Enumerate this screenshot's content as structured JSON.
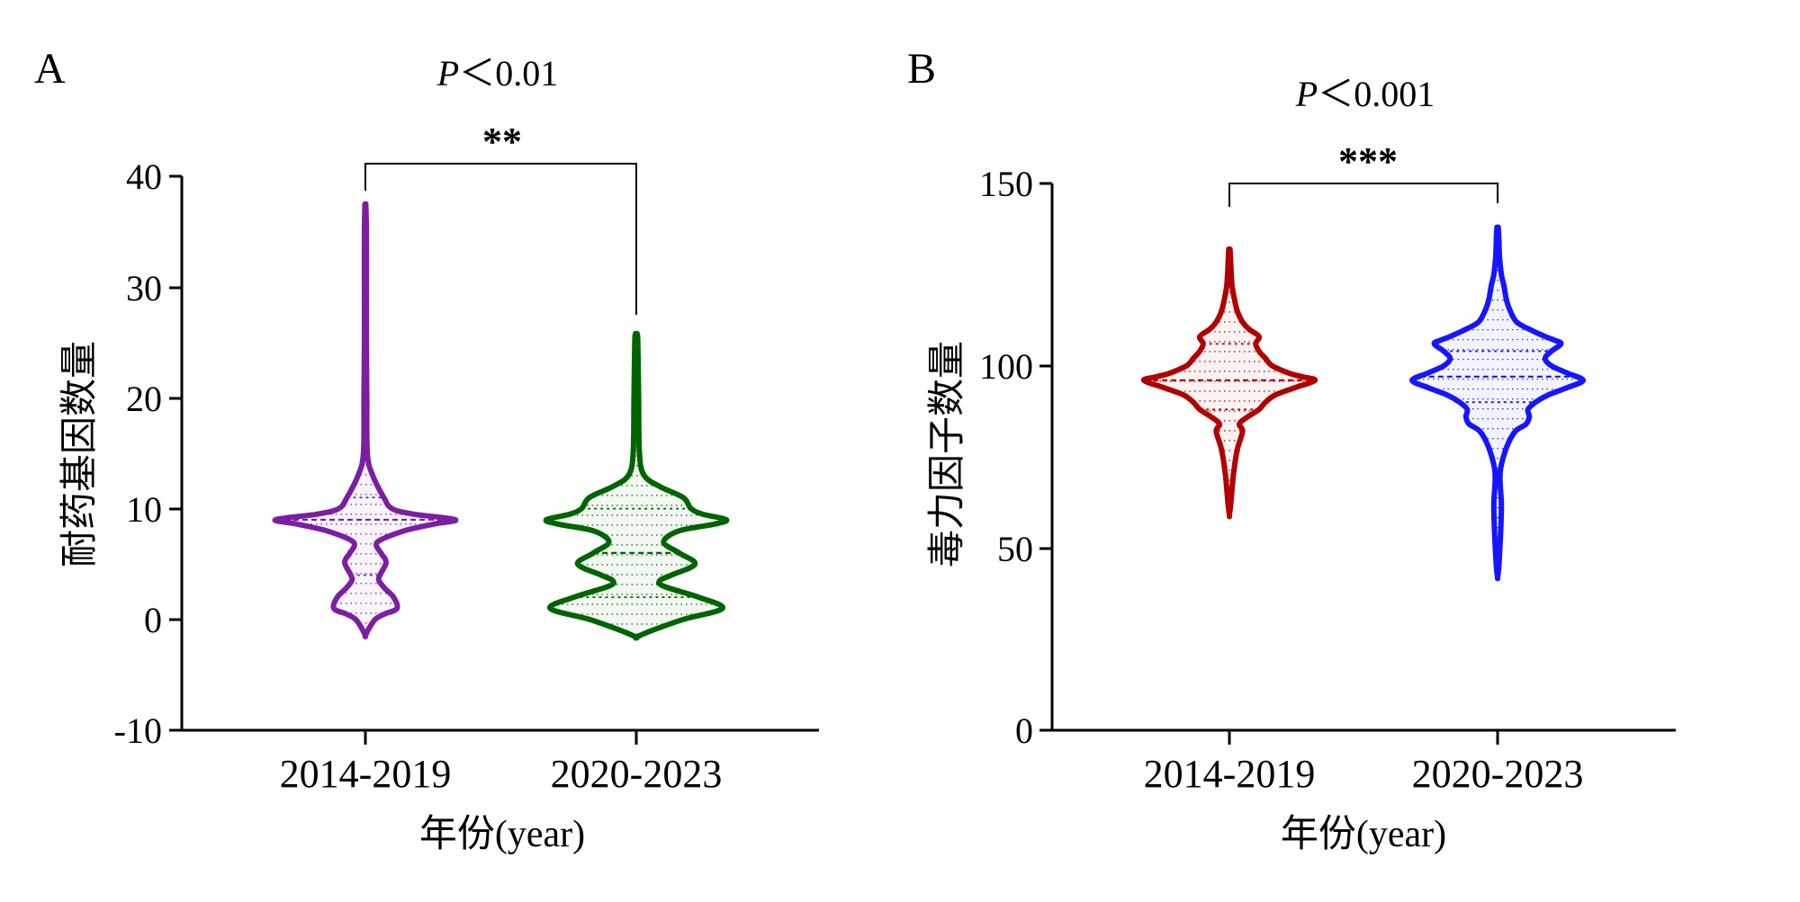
{
  "chart_data": [
    {
      "type": "violin",
      "panel_label": "A",
      "pvalue": {
        "prefix": "P",
        "text": "＜0.01"
      },
      "significance": "**",
      "ylabel": "耐药基因数量",
      "xlabel": "年份(year)",
      "ylim": [
        -10,
        40
      ],
      "yticks": [
        -10,
        0,
        10,
        20,
        30,
        40
      ],
      "ytick_labels": [
        "-10",
        "0",
        "10",
        "20",
        "30",
        "40"
      ],
      "categories": [
        "2014-2019",
        "2020-2023"
      ],
      "series": [
        {
          "category": "2014-2019",
          "color": "#7b1fa2",
          "median": 9,
          "quartiles": [
            4,
            11
          ],
          "profile": [
            [
              -1.5,
              0
            ],
            [
              -1,
              5
            ],
            [
              0,
              20
            ],
            [
              0.5,
              40
            ],
            [
              1,
              65
            ],
            [
              2,
              58
            ],
            [
              2.8,
              40
            ],
            [
              3.5,
              28
            ],
            [
              4,
              30
            ],
            [
              5,
              42
            ],
            [
              5.5,
              40
            ],
            [
              6,
              32
            ],
            [
              7,
              25
            ],
            [
              8,
              80
            ],
            [
              8.6,
              140
            ],
            [
              9,
              185
            ],
            [
              9.5,
              100
            ],
            [
              10,
              55
            ],
            [
              11,
              38
            ],
            [
              13,
              15
            ],
            [
              15,
              4
            ],
            [
              20,
              3
            ],
            [
              25,
              2
            ],
            [
              30,
              2
            ],
            [
              35,
              2
            ],
            [
              37.5,
              1
            ]
          ]
        },
        {
          "category": "2020-2023",
          "color": "#006400",
          "median": 6,
          "quartiles": [
            2,
            10
          ],
          "profile": [
            [
              -1.6,
              0
            ],
            [
              -1,
              20
            ],
            [
              0,
              60
            ],
            [
              1,
              110
            ],
            [
              2,
              80
            ],
            [
              3,
              35
            ],
            [
              3.5,
              30
            ],
            [
              4,
              45
            ],
            [
              5,
              75
            ],
            [
              6,
              55
            ],
            [
              7,
              35
            ],
            [
              8,
              55
            ],
            [
              8.6,
              100
            ],
            [
              9,
              115
            ],
            [
              9.5,
              85
            ],
            [
              10,
              70
            ],
            [
              11,
              60
            ],
            [
              12,
              30
            ],
            [
              13,
              10
            ],
            [
              15,
              4
            ],
            [
              20,
              3
            ],
            [
              25,
              2
            ],
            [
              25.8,
              1
            ]
          ]
        }
      ]
    },
    {
      "type": "violin",
      "panel_label": "B",
      "pvalue": {
        "prefix": "P",
        "text": "＜0.001"
      },
      "significance": "***",
      "ylabel": "毒力因子数量",
      "xlabel": "年份(year)",
      "ylim": [
        0,
        150
      ],
      "yticks": [
        0,
        50,
        100,
        150
      ],
      "ytick_labels": [
        "0",
        "50",
        "100",
        "150"
      ],
      "categories": [
        "2014-2019",
        "2020-2023"
      ],
      "series": [
        {
          "category": "2014-2019",
          "color": "#b00000",
          "median": 96,
          "quartiles": [
            88,
            106
          ],
          "profile": [
            [
              59,
              0
            ],
            [
              62,
              2
            ],
            [
              70,
              6
            ],
            [
              77,
              12
            ],
            [
              82,
              20
            ],
            [
              84,
              15
            ],
            [
              86,
              28
            ],
            [
              88,
              45
            ],
            [
              90,
              55
            ],
            [
              92,
              70
            ],
            [
              94,
              100
            ],
            [
              96,
              130
            ],
            [
              97,
              110
            ],
            [
              98,
              90
            ],
            [
              100,
              65
            ],
            [
              102,
              55
            ],
            [
              104,
              45
            ],
            [
              106,
              40
            ],
            [
              108,
              45
            ],
            [
              110,
              30
            ],
            [
              112,
              20
            ],
            [
              115,
              12
            ],
            [
              118,
              8
            ],
            [
              122,
              4
            ],
            [
              128,
              2
            ],
            [
              132,
              1
            ]
          ]
        },
        {
          "category": "2020-2023",
          "color": "#1515ff",
          "median": 97,
          "quartiles": [
            90,
            104
          ],
          "profile": [
            [
              42,
              0
            ],
            [
              45,
              2
            ],
            [
              55,
              5
            ],
            [
              62,
              6
            ],
            [
              68,
              4
            ],
            [
              72,
              5
            ],
            [
              78,
              15
            ],
            [
              82,
              28
            ],
            [
              84,
              45
            ],
            [
              86,
              50
            ],
            [
              88,
              48
            ],
            [
              90,
              60
            ],
            [
              92,
              80
            ],
            [
              94,
              110
            ],
            [
              96,
              135
            ],
            [
              98,
              110
            ],
            [
              100,
              85
            ],
            [
              102,
              75
            ],
            [
              104,
              85
            ],
            [
              106,
              100
            ],
            [
              107,
              90
            ],
            [
              108,
              75
            ],
            [
              110,
              50
            ],
            [
              112,
              30
            ],
            [
              115,
              20
            ],
            [
              118,
              14
            ],
            [
              122,
              10
            ],
            [
              125,
              6
            ],
            [
              130,
              3
            ],
            [
              135,
              2
            ],
            [
              138,
              1
            ]
          ]
        }
      ]
    }
  ]
}
